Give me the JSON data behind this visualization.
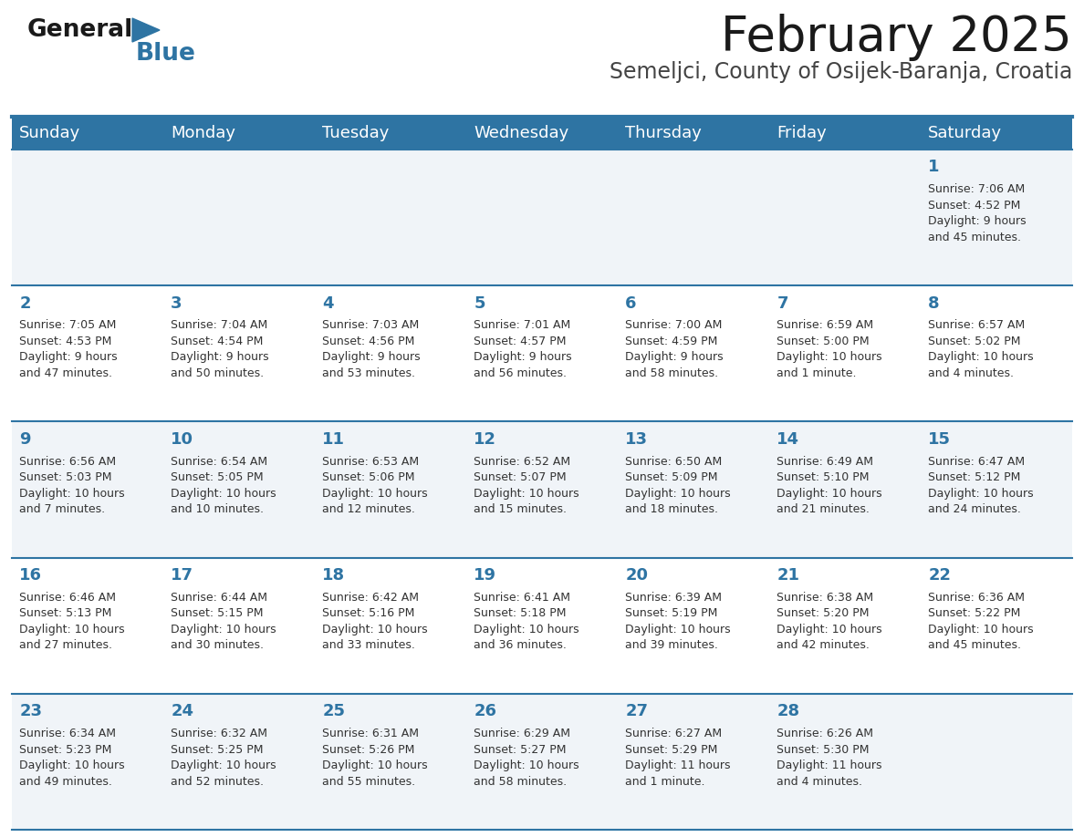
{
  "title": "February 2025",
  "subtitle": "Semeljci, County of Osijek-Baranja, Croatia",
  "header_bg": "#2E74A3",
  "header_text": "#FFFFFF",
  "row_bg_even": "#F0F4F8",
  "row_bg_odd": "#FFFFFF",
  "cell_border": "#2E74A3",
  "day_number_color": "#2E74A3",
  "info_text_color": "#333333",
  "days_of_week": [
    "Sunday",
    "Monday",
    "Tuesday",
    "Wednesday",
    "Thursday",
    "Friday",
    "Saturday"
  ],
  "weeks": [
    [
      {
        "day": null,
        "info": null
      },
      {
        "day": null,
        "info": null
      },
      {
        "day": null,
        "info": null
      },
      {
        "day": null,
        "info": null
      },
      {
        "day": null,
        "info": null
      },
      {
        "day": null,
        "info": null
      },
      {
        "day": 1,
        "info": "Sunrise: 7:06 AM\nSunset: 4:52 PM\nDaylight: 9 hours\nand 45 minutes."
      }
    ],
    [
      {
        "day": 2,
        "info": "Sunrise: 7:05 AM\nSunset: 4:53 PM\nDaylight: 9 hours\nand 47 minutes."
      },
      {
        "day": 3,
        "info": "Sunrise: 7:04 AM\nSunset: 4:54 PM\nDaylight: 9 hours\nand 50 minutes."
      },
      {
        "day": 4,
        "info": "Sunrise: 7:03 AM\nSunset: 4:56 PM\nDaylight: 9 hours\nand 53 minutes."
      },
      {
        "day": 5,
        "info": "Sunrise: 7:01 AM\nSunset: 4:57 PM\nDaylight: 9 hours\nand 56 minutes."
      },
      {
        "day": 6,
        "info": "Sunrise: 7:00 AM\nSunset: 4:59 PM\nDaylight: 9 hours\nand 58 minutes."
      },
      {
        "day": 7,
        "info": "Sunrise: 6:59 AM\nSunset: 5:00 PM\nDaylight: 10 hours\nand 1 minute."
      },
      {
        "day": 8,
        "info": "Sunrise: 6:57 AM\nSunset: 5:02 PM\nDaylight: 10 hours\nand 4 minutes."
      }
    ],
    [
      {
        "day": 9,
        "info": "Sunrise: 6:56 AM\nSunset: 5:03 PM\nDaylight: 10 hours\nand 7 minutes."
      },
      {
        "day": 10,
        "info": "Sunrise: 6:54 AM\nSunset: 5:05 PM\nDaylight: 10 hours\nand 10 minutes."
      },
      {
        "day": 11,
        "info": "Sunrise: 6:53 AM\nSunset: 5:06 PM\nDaylight: 10 hours\nand 12 minutes."
      },
      {
        "day": 12,
        "info": "Sunrise: 6:52 AM\nSunset: 5:07 PM\nDaylight: 10 hours\nand 15 minutes."
      },
      {
        "day": 13,
        "info": "Sunrise: 6:50 AM\nSunset: 5:09 PM\nDaylight: 10 hours\nand 18 minutes."
      },
      {
        "day": 14,
        "info": "Sunrise: 6:49 AM\nSunset: 5:10 PM\nDaylight: 10 hours\nand 21 minutes."
      },
      {
        "day": 15,
        "info": "Sunrise: 6:47 AM\nSunset: 5:12 PM\nDaylight: 10 hours\nand 24 minutes."
      }
    ],
    [
      {
        "day": 16,
        "info": "Sunrise: 6:46 AM\nSunset: 5:13 PM\nDaylight: 10 hours\nand 27 minutes."
      },
      {
        "day": 17,
        "info": "Sunrise: 6:44 AM\nSunset: 5:15 PM\nDaylight: 10 hours\nand 30 minutes."
      },
      {
        "day": 18,
        "info": "Sunrise: 6:42 AM\nSunset: 5:16 PM\nDaylight: 10 hours\nand 33 minutes."
      },
      {
        "day": 19,
        "info": "Sunrise: 6:41 AM\nSunset: 5:18 PM\nDaylight: 10 hours\nand 36 minutes."
      },
      {
        "day": 20,
        "info": "Sunrise: 6:39 AM\nSunset: 5:19 PM\nDaylight: 10 hours\nand 39 minutes."
      },
      {
        "day": 21,
        "info": "Sunrise: 6:38 AM\nSunset: 5:20 PM\nDaylight: 10 hours\nand 42 minutes."
      },
      {
        "day": 22,
        "info": "Sunrise: 6:36 AM\nSunset: 5:22 PM\nDaylight: 10 hours\nand 45 minutes."
      }
    ],
    [
      {
        "day": 23,
        "info": "Sunrise: 6:34 AM\nSunset: 5:23 PM\nDaylight: 10 hours\nand 49 minutes."
      },
      {
        "day": 24,
        "info": "Sunrise: 6:32 AM\nSunset: 5:25 PM\nDaylight: 10 hours\nand 52 minutes."
      },
      {
        "day": 25,
        "info": "Sunrise: 6:31 AM\nSunset: 5:26 PM\nDaylight: 10 hours\nand 55 minutes."
      },
      {
        "day": 26,
        "info": "Sunrise: 6:29 AM\nSunset: 5:27 PM\nDaylight: 10 hours\nand 58 minutes."
      },
      {
        "day": 27,
        "info": "Sunrise: 6:27 AM\nSunset: 5:29 PM\nDaylight: 11 hours\nand 1 minute."
      },
      {
        "day": 28,
        "info": "Sunrise: 6:26 AM\nSunset: 5:30 PM\nDaylight: 11 hours\nand 4 minutes."
      },
      {
        "day": null,
        "info": null
      }
    ]
  ],
  "logo_text_general": "General",
  "logo_text_blue": "Blue",
  "logo_color_general": "#1a1a1a",
  "logo_color_blue": "#2E74A3",
  "title_fontsize": 38,
  "subtitle_fontsize": 17,
  "header_fontsize": 13,
  "day_num_fontsize": 13,
  "info_fontsize": 9
}
